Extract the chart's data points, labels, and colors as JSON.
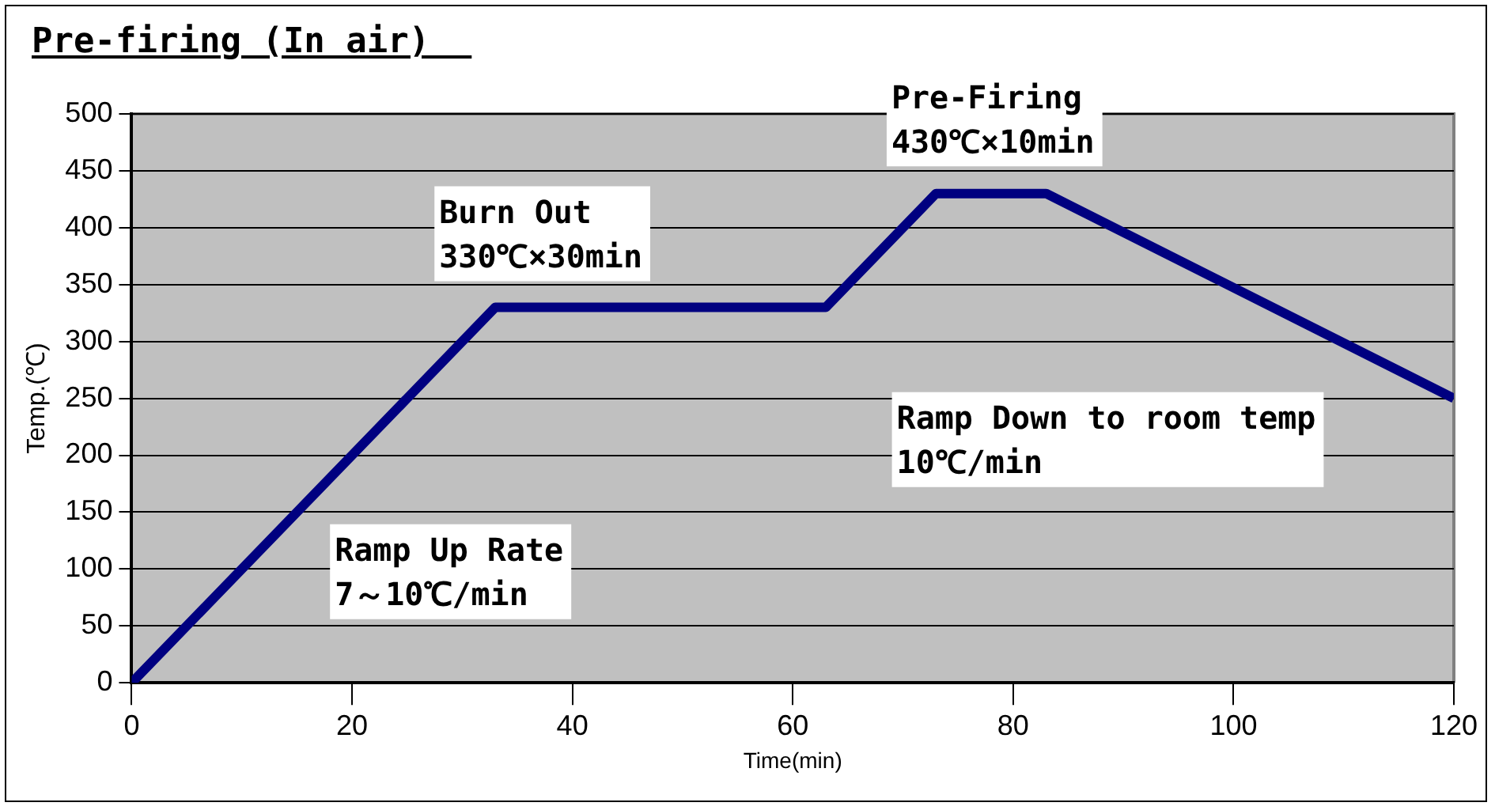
{
  "chart_data": {
    "type": "line",
    "title": "Pre-firing (In air)",
    "xlabel": "Time(min)",
    "ylabel": "Temp.(℃)",
    "x": [
      0,
      33,
      63,
      73,
      83,
      120
    ],
    "series": [
      {
        "color": "#000080",
        "values": [
          0,
          330,
          330,
          430,
          430,
          250
        ]
      }
    ],
    "xlim": [
      0,
      120
    ],
    "xticks": [
      0,
      20,
      40,
      60,
      80,
      100,
      120
    ],
    "ylim": [
      0,
      500
    ],
    "yticks": [
      0,
      50,
      100,
      150,
      200,
      250,
      300,
      350,
      400,
      450,
      500
    ],
    "grid": "y",
    "legend": false,
    "marker": "none",
    "line_style": "solid",
    "annotations": [
      "Burn Out\n330℃×30min",
      "Ramp Up Rate\n7～10℃/min",
      "Pre-Firing\n430℃×10min",
      "Ramp Down to room temp\n10℃/min"
    ]
  }
}
